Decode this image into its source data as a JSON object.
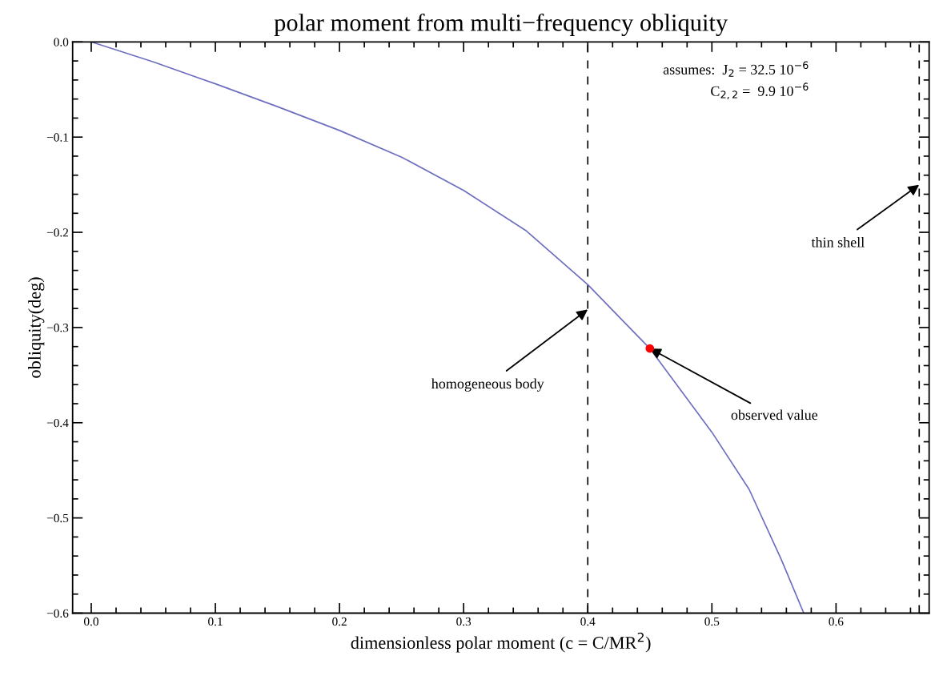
{
  "chart_data": {
    "type": "line",
    "title": "polar moment from multi−frequency obliquity",
    "xlabel": "dimensionless polar moment (c = C/MR$^{2}$)",
    "ylabel": "obliquity(deg)",
    "xlim": [
      -0.015,
      0.675
    ],
    "ylim": [
      -0.6,
      0.0
    ],
    "xticks": [
      {
        "value": 0,
        "label": "0.0"
      },
      0.1,
      0.2,
      0.3,
      0.4,
      0.5,
      0.6
    ],
    "yticks": [
      {
        "value": 0,
        "label": "0.0"
      },
      {
        "value": -0.1,
        "label": "−0.1"
      },
      {
        "value": -0.2,
        "label": "−0.2"
      },
      {
        "value": -0.3,
        "label": "−0.3"
      },
      {
        "value": -0.4,
        "label": "−0.4"
      },
      {
        "value": -0.5,
        "label": "−0.5"
      },
      {
        "value": -0.6,
        "label": "−0.6"
      }
    ],
    "grid": false,
    "legend": false,
    "series": [
      {
        "color": "#6e6ec0",
        "line_style": "solid",
        "x": [
          0,
          0.05,
          0.1,
          0.15,
          0.2,
          0.25,
          0.3,
          0.35,
          0.4,
          0.45,
          0.5,
          0.53,
          0.556,
          0.574
        ],
        "values": [
          0,
          -0.021,
          -0.044,
          -0.068,
          -0.093,
          -0.121,
          -0.156,
          -0.198,
          -0.255,
          -0.322,
          -0.41,
          -0.47,
          -0.544,
          -0.6
        ]
      },
      {
        "type": "scatter",
        "color": "#ff0000",
        "marker": "circle",
        "x": [
          0.45
        ],
        "values": [
          -0.322
        ]
      }
    ],
    "ref_lines": [
      {
        "axis": "x",
        "value": 0.4,
        "color": "#000000",
        "line_style": "dashed"
      },
      {
        "axis": "x",
        "value": 0.667,
        "color": "#000000",
        "line_style": "dashed"
      }
    ],
    "annotations": [
      "assumes:  J$_{2}$ = 32.5 10$^{−6}$\nC$_{2,2}$ =  9.9 10$^{−6}$",
      {
        "text": "homogeneous body",
        "x": 0.4,
        "y": -0.281
      },
      {
        "text": "observed value",
        "x": 0.45,
        "y": -0.322
      },
      {
        "text": "thin shell",
        "x": 0.667,
        "y": -0.15
      }
    ]
  }
}
